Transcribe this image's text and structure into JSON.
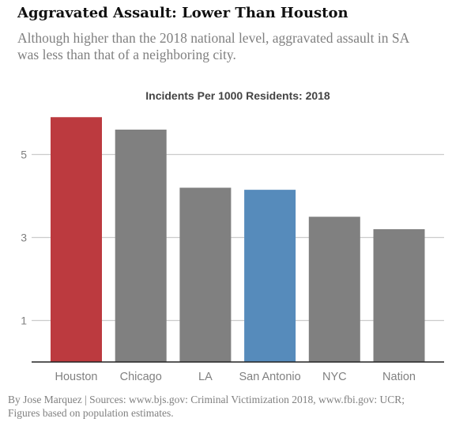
{
  "header": {
    "title": "Aggravated Assault: Lower Than Houston",
    "subtitle": "Although higher than the 2018 national level, aggravated assault in SA was less than that of a neighboring city."
  },
  "footer": {
    "source": "By Jose Marquez | Sources: www.bjs.gov: Criminal Victimization 2018, www.fbi.gov: UCR; Figures based on population estimates."
  },
  "chart_data": {
    "type": "bar",
    "title": "Incidents Per 1000 Residents: 2018",
    "xlabel": "",
    "ylabel": "",
    "categories": [
      "Houston",
      "Chicago",
      "LA",
      "San Antonio",
      "NYC",
      "Nation"
    ],
    "values": [
      5.9,
      5.6,
      4.2,
      4.15,
      3.5,
      3.2
    ],
    "bar_colors": [
      "#bc3a3f",
      "#808080",
      "#808080",
      "#568bbb",
      "#808080",
      "#808080"
    ],
    "yticks": [
      1,
      3,
      5
    ],
    "ylim": [
      0,
      6.0
    ],
    "grid": true,
    "legend": "none",
    "colors": {
      "highlight_houston": "#bc3a3f",
      "highlight_san_antonio": "#568bbb",
      "default_bar": "#808080",
      "gridline": "#cccccc",
      "axis_text": "#808080"
    }
  }
}
